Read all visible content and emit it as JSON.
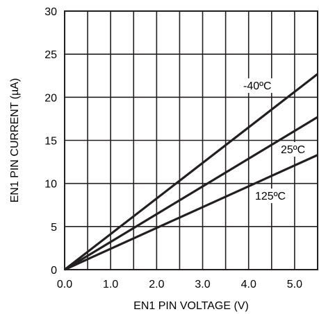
{
  "chart_data": {
    "type": "line",
    "xlabel": "EN1 PIN VOLTAGE (V)",
    "ylabel": "EN1 PIN CURRENT (µA)",
    "xlim": [
      0,
      5.5
    ],
    "ylim": [
      0,
      30
    ],
    "x_ticks": [
      "0.0",
      "1.0",
      "2.0",
      "3.0",
      "4.0",
      "5.0"
    ],
    "y_ticks": [
      "0",
      "5",
      "10",
      "15",
      "20",
      "25",
      "30"
    ],
    "grid": true,
    "series": [
      {
        "name": "-40ºC",
        "x": [
          0,
          5.5
        ],
        "y": [
          0,
          22.7
        ]
      },
      {
        "name": "25ºC",
        "x": [
          0,
          5.5
        ],
        "y": [
          0,
          17.7
        ]
      },
      {
        "name": "125ºC",
        "x": [
          0,
          5.5
        ],
        "y": [
          0,
          13.3
        ]
      }
    ]
  },
  "colors": {
    "line": "#231f20",
    "grid": "#231f20",
    "background": "#ffffff"
  }
}
